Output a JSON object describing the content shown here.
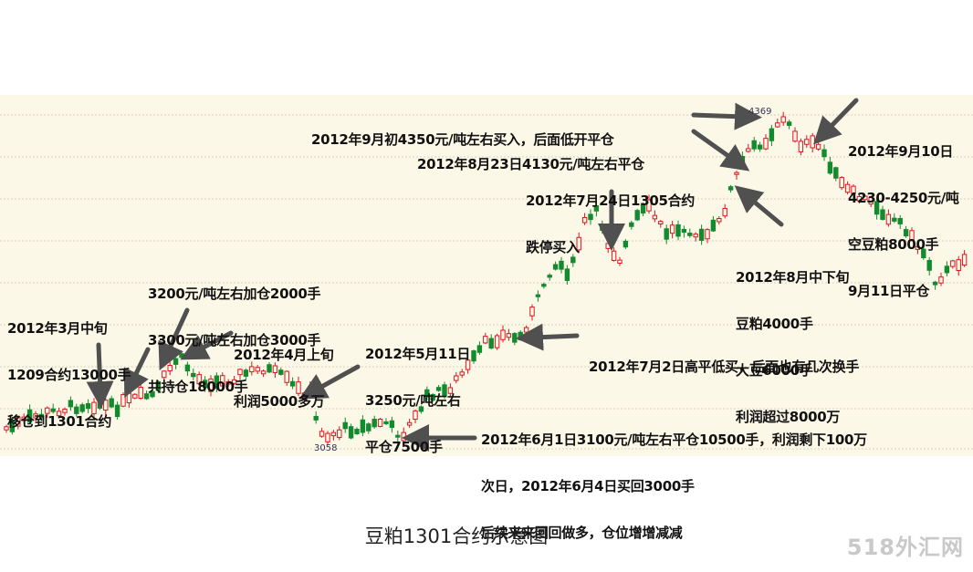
{
  "colors": {
    "background": "#fcf8e8",
    "gridline": "#d8d0c0",
    "up": "#e0141e",
    "down": "#138a2e",
    "arrow": "#505050",
    "text": "#111111"
  },
  "chart_data": {
    "type": "candlestick",
    "title": "豆粕1301合约示意图",
    "grid": true,
    "price_labels": {
      "high": "4369",
      "low": "3058"
    },
    "annotations": [
      {
        "id": "ann-mar",
        "lines": [
          "2012年3月中旬",
          "1209合约13000手",
          "移仓到1301合约"
        ]
      },
      {
        "id": "ann-3200",
        "lines": [
          "3200元/吨左右加仓2000手",
          "3300元/吨左右加仓3000手",
          "共持仓18000手"
        ]
      },
      {
        "id": "ann-apr",
        "lines": [
          "2012年4月上旬",
          "利润5000多万"
        ]
      },
      {
        "id": "ann-may",
        "lines": [
          "2012年5月11日",
          "3250元/吨左右",
          "平仓7500手"
        ]
      },
      {
        "id": "ann-jun",
        "lines": [
          "2012年6月1日3100元/吨左右平仓10500手，利润剩下100万",
          "次日，2012年6月4日买回3000手",
          "后续来来回回做多，仓位增增减减"
        ]
      },
      {
        "id": "ann-jul2",
        "lines": [
          "2012年7月2日高平低买，后面也有几次换手"
        ]
      },
      {
        "id": "ann-jul24",
        "lines": [
          "2012年7月24日1305合约",
          "跌停买入"
        ]
      },
      {
        "id": "ann-aug",
        "lines": [
          "2012年8月中下旬",
          "豆粕4000手",
          "大豆6000手",
          "利润超过8000万"
        ]
      },
      {
        "id": "ann-aug23",
        "lines": [
          "2012年8月23日4130元/吨左右平仓"
        ]
      },
      {
        "id": "ann-sep",
        "lines": [
          "2012年9月初4350元/吨左右买入，后面低开平仓"
        ]
      },
      {
        "id": "ann-sep10",
        "lines": [
          "2012年9月10日",
          "4230-4250元/吨",
          "空豆粕8000手",
          "9月11日平仓"
        ]
      }
    ]
  },
  "caption": "豆粕1301合约示意图",
  "watermark": "518外汇网"
}
